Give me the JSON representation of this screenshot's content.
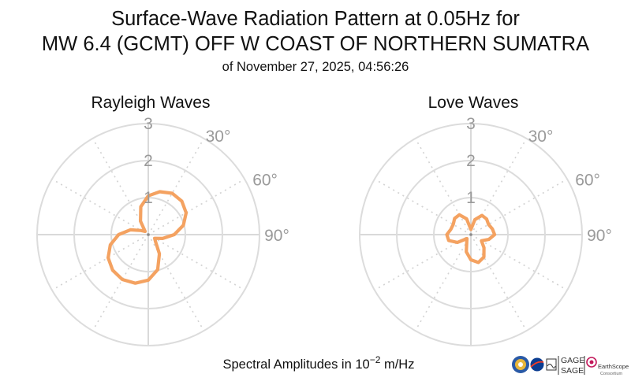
{
  "title": {
    "line1": "Surface-Wave Radiation Pattern at 0.05Hz for",
    "line2": "MW 6.4 (GCMT) OFF W COAST OF NORTHERN SUMATRA",
    "line3": "of November 27, 2025, 04:56:26"
  },
  "footer": {
    "label_prefix": "Spectral Amplitudes in 10",
    "label_exponent": "−2",
    "label_suffix": " m/Hz"
  },
  "logos": {
    "gage": "GAGE",
    "sage": "SAGE",
    "earthscope": "EarthScope",
    "consortium": "Consortium"
  },
  "colors": {
    "pattern": "#f4a261",
    "grid": "#dcdcdc",
    "tick": "#9a9a9a"
  },
  "chart_data": [
    {
      "type": "polar-line",
      "title": "Rayleigh Waves",
      "radial_ticks": [
        "1",
        "2",
        "3"
      ],
      "radial_range": [
        0,
        3
      ],
      "angle_ticks": [
        "30°",
        "60°",
        "90°"
      ],
      "direction": "clockwise from north",
      "series": [
        {
          "theta": [
            0,
            15,
            30,
            45,
            60,
            75,
            90,
            105,
            120,
            135,
            150,
            165,
            180,
            195,
            210,
            225,
            240,
            255,
            270,
            285,
            300,
            315,
            330,
            345,
            360
          ],
          "r": [
            1.05,
            1.2,
            1.29,
            1.28,
            1.18,
            0.98,
            0.7,
            0.4,
            0.2,
            0.28,
            0.6,
            0.98,
            1.23,
            1.36,
            1.4,
            1.36,
            1.25,
            1.06,
            0.8,
            0.5,
            0.22,
            0.12,
            0.42,
            0.78,
            1.05
          ]
        }
      ]
    },
    {
      "type": "polar-line",
      "title": "Love Waves",
      "radial_ticks": [
        "1",
        "2",
        "3"
      ],
      "radial_range": [
        0,
        3
      ],
      "angle_ticks": [
        "30°",
        "60°",
        "90°"
      ],
      "direction": "clockwise from north",
      "series": [
        {
          "theta": [
            0,
            15,
            30,
            45,
            60,
            75,
            90,
            105,
            120,
            135,
            150,
            165,
            180,
            195,
            210,
            225,
            240,
            255,
            270,
            285,
            300,
            315,
            330,
            345,
            360
          ],
          "r": [
            0.14,
            0.42,
            0.6,
            0.6,
            0.55,
            0.6,
            0.64,
            0.5,
            0.33,
            0.5,
            0.7,
            0.78,
            0.68,
            0.48,
            0.22,
            0.15,
            0.42,
            0.62,
            0.65,
            0.56,
            0.55,
            0.62,
            0.62,
            0.44,
            0.14
          ]
        }
      ]
    }
  ]
}
